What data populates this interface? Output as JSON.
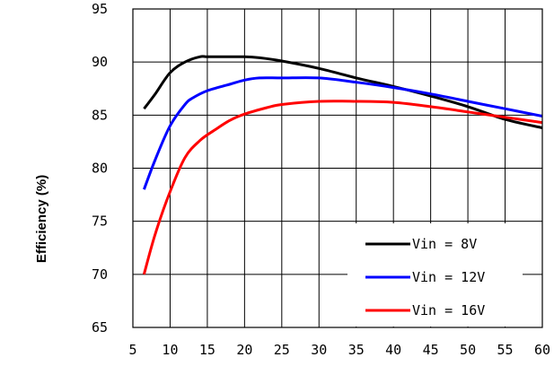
{
  "chart_data": {
    "type": "line",
    "title": "",
    "xlabel": "",
    "ylabel": "Efficiency (%)",
    "xlim": [
      5,
      60
    ],
    "ylim": [
      65,
      95
    ],
    "x_ticks": [
      "5",
      "10",
      "15",
      "20",
      "25",
      "30",
      "35",
      "40",
      "45",
      "50",
      "55",
      "60"
    ],
    "y_ticks": [
      "65",
      "70",
      "75",
      "80",
      "85",
      "90",
      "95"
    ],
    "grid": true,
    "legend_position": "bottom-right",
    "series": [
      {
        "name": "Vin = 8V",
        "color": "#000000",
        "x": [
          6.5,
          8,
          10,
          12,
          14,
          15,
          17,
          20,
          22,
          25,
          30,
          35,
          40,
          45,
          50,
          55,
          60
        ],
        "y": [
          85.6,
          87.0,
          89.0,
          90.0,
          90.5,
          90.5,
          90.5,
          90.5,
          90.4,
          90.1,
          89.4,
          88.5,
          87.7,
          86.8,
          85.8,
          84.6,
          83.8
        ]
      },
      {
        "name": "Vin = 12V",
        "color": "#0000ff",
        "x": [
          6.5,
          8,
          10,
          12,
          13,
          15,
          18,
          20,
          22,
          25,
          30,
          35,
          40,
          45,
          50,
          55,
          60
        ],
        "y": [
          78.0,
          80.8,
          84.0,
          86.0,
          86.6,
          87.3,
          87.9,
          88.3,
          88.5,
          88.5,
          88.5,
          88.1,
          87.6,
          87.0,
          86.3,
          85.6,
          84.9
        ]
      },
      {
        "name": "Vin = 16V",
        "color": "#ff0000",
        "x": [
          6.5,
          8,
          10,
          12,
          14,
          16,
          18,
          20,
          23,
          25,
          30,
          35,
          40,
          45,
          50,
          55,
          60
        ],
        "y": [
          70.0,
          73.8,
          77.8,
          81.0,
          82.6,
          83.6,
          84.5,
          85.1,
          85.7,
          86.0,
          86.3,
          86.3,
          86.2,
          85.8,
          85.3,
          84.8,
          84.3
        ]
      }
    ]
  }
}
